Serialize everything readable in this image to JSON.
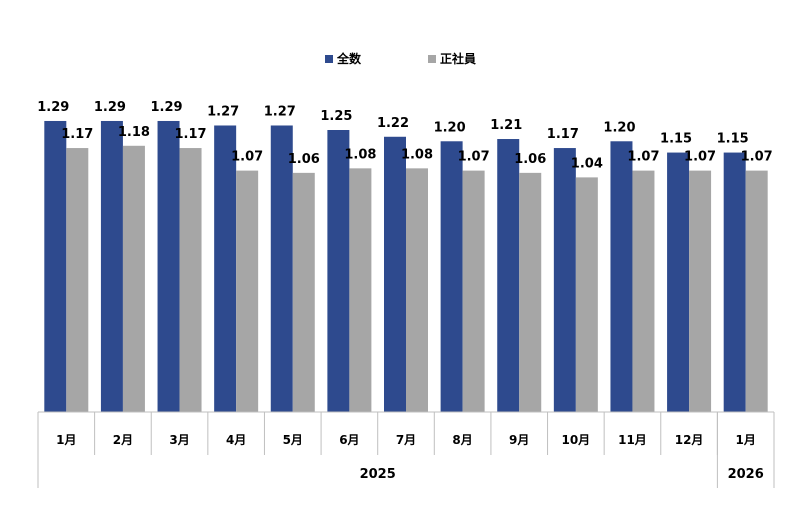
{
  "chart_data": {
    "type": "bar",
    "title": "",
    "xlabel": "",
    "ylabel": "",
    "ylim": [
      0,
      1.4
    ],
    "grid": false,
    "legend_position": "top-center",
    "categories": [
      "1月",
      "2月",
      "3月",
      "4月",
      "5月",
      "6月",
      "7月",
      "8月",
      "9月",
      "10月",
      "11月",
      "12月",
      "1月"
    ],
    "years": [
      {
        "label": "2025",
        "span": 12
      },
      {
        "label": "2026",
        "span": 1
      }
    ],
    "series": [
      {
        "name": "全数",
        "color": "#2e4a8e",
        "values": [
          1.29,
          1.29,
          1.29,
          1.27,
          1.27,
          1.25,
          1.22,
          1.2,
          1.21,
          1.17,
          1.2,
          1.15,
          1.15
        ],
        "labels": [
          "1.29",
          "1.29",
          "1.29",
          "1.27",
          "1.27",
          "1.25",
          "1.22",
          "1.20",
          "1.21",
          "1.17",
          "1.20",
          "1.15",
          "1.15"
        ]
      },
      {
        "name": "正社員",
        "color": "#a6a6a6",
        "values": [
          1.17,
          1.18,
          1.17,
          1.07,
          1.06,
          1.08,
          1.08,
          1.07,
          1.06,
          1.04,
          1.07,
          1.07,
          1.07
        ],
        "labels": [
          "1.17",
          "1.18",
          "1.17",
          "1.07",
          "1.06",
          "1.08",
          "1.08",
          "1.07",
          "1.06",
          "1.04",
          "1.07",
          "1.07",
          "1.07"
        ]
      }
    ]
  }
}
